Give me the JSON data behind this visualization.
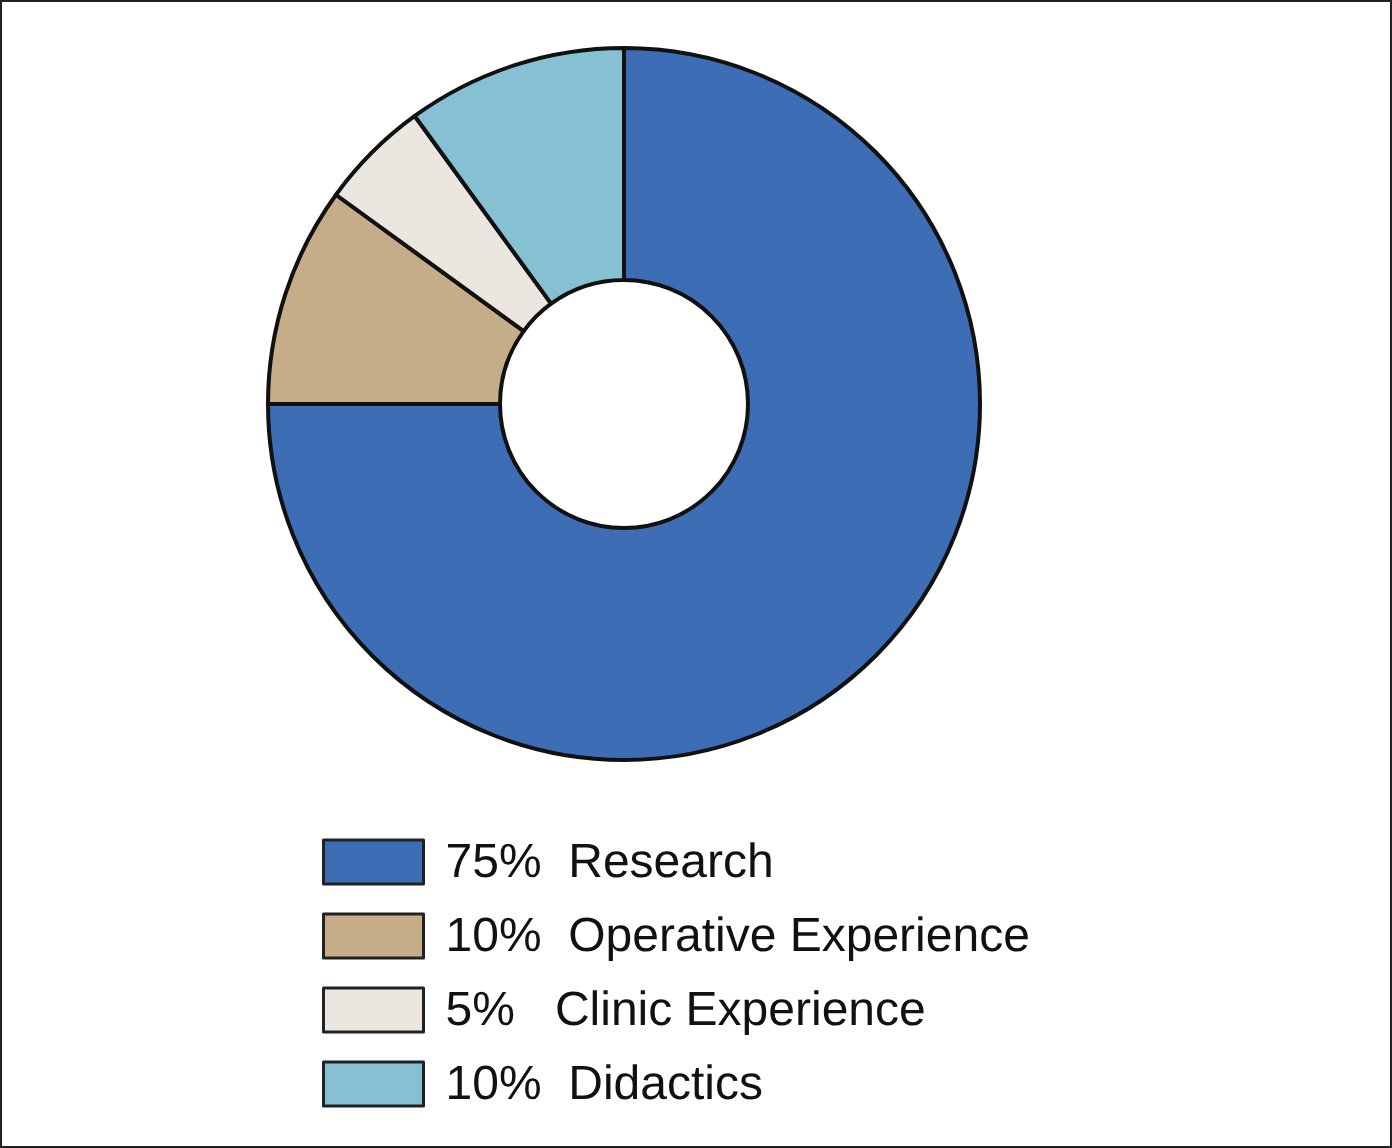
{
  "chart_data": {
    "type": "donut",
    "categories": [
      "75%  Research",
      "10%  Operative Experience",
      "5%   Clinic Experience",
      "10%  Didactics"
    ],
    "values": [
      75,
      10,
      5,
      10
    ],
    "colors": [
      "#3d6db5",
      "#c4ad88",
      "#ebe6df",
      "#86c0d3"
    ],
    "legend": "bottom"
  }
}
